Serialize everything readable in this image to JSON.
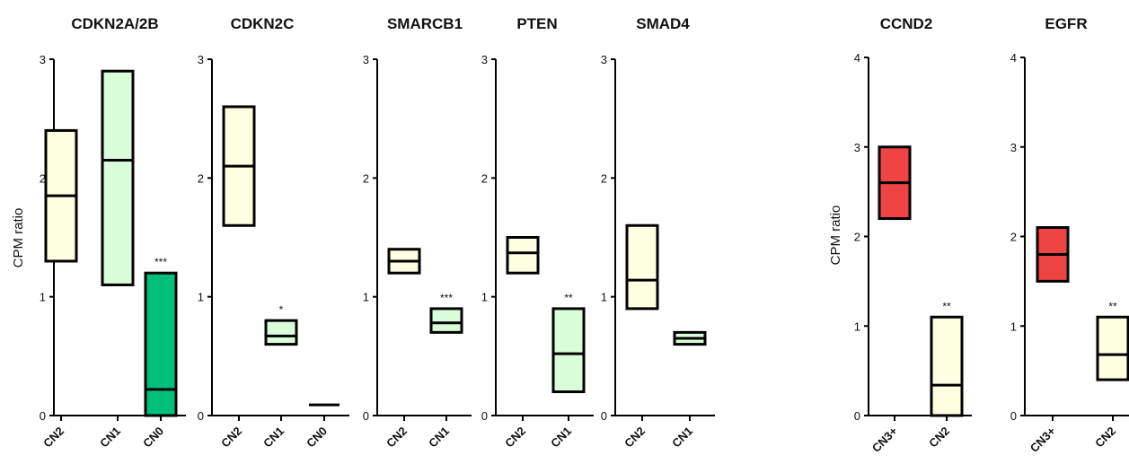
{
  "colors": {
    "cn2": "#FFFFE1",
    "cn1": "#D9FDD9",
    "cn0": "#00BF78",
    "cn3plus": "#F04444",
    "axis": "#000000"
  },
  "chart_data": [
    {
      "type": "floating-bar",
      "title": "CDKN2A/2B",
      "ylabel": "CPM ratio",
      "ylim": [
        0,
        3
      ],
      "yticks": [
        "0",
        "1",
        "2",
        "3"
      ],
      "categories": [
        "CN2",
        "CN1",
        "CN0"
      ],
      "boxes": [
        {
          "category": "CN2",
          "min": 1.3,
          "max": 2.4,
          "median": 1.85,
          "color_key": "cn2"
        },
        {
          "category": "CN1",
          "min": 1.1,
          "max": 2.9,
          "median": 2.15,
          "color_key": "cn1"
        },
        {
          "category": "CN0",
          "min": 0.0,
          "max": 1.2,
          "median": 0.22,
          "color_key": "cn0",
          "significance": "***"
        }
      ]
    },
    {
      "type": "floating-bar",
      "title": "CDKN2C",
      "ylim": [
        0,
        3
      ],
      "yticks": [
        "0",
        "1",
        "2",
        "3"
      ],
      "categories": [
        "CN2",
        "CN1",
        "CN0"
      ],
      "boxes": [
        {
          "category": "CN2",
          "min": 1.6,
          "max": 2.6,
          "median": 2.1,
          "color_key": "cn2"
        },
        {
          "category": "CN1",
          "min": 0.6,
          "max": 0.8,
          "median": 0.67,
          "color_key": "cn1",
          "significance": "*"
        },
        {
          "category": "CN0",
          "min": 0.09,
          "max": 0.09,
          "median": 0.09,
          "color_key": "cn0"
        }
      ]
    },
    {
      "type": "floating-bar",
      "title": "SMARCB1",
      "ylim": [
        0,
        3
      ],
      "yticks": [
        "0",
        "1",
        "2",
        "3"
      ],
      "categories": [
        "CN2",
        "CN1"
      ],
      "boxes": [
        {
          "category": "CN2",
          "min": 1.2,
          "max": 1.4,
          "median": 1.3,
          "color_key": "cn2"
        },
        {
          "category": "CN1",
          "min": 0.7,
          "max": 0.9,
          "median": 0.78,
          "color_key": "cn1",
          "significance": "***"
        }
      ]
    },
    {
      "type": "floating-bar",
      "title": "PTEN",
      "ylim": [
        0,
        3
      ],
      "yticks": [
        "0",
        "1",
        "2",
        "3"
      ],
      "categories": [
        "CN2",
        "CN1"
      ],
      "boxes": [
        {
          "category": "CN2",
          "min": 1.2,
          "max": 1.5,
          "median": 1.37,
          "color_key": "cn2"
        },
        {
          "category": "CN1",
          "min": 0.2,
          "max": 0.9,
          "median": 0.52,
          "color_key": "cn1",
          "significance": "**"
        }
      ]
    },
    {
      "type": "floating-bar",
      "title": "SMAD4",
      "ylim": [
        0,
        3
      ],
      "yticks": [
        "0",
        "1",
        "2",
        "3"
      ],
      "categories": [
        "CN2",
        "CN1"
      ],
      "boxes": [
        {
          "category": "CN2",
          "min": 0.9,
          "max": 1.6,
          "median": 1.14,
          "color_key": "cn2"
        },
        {
          "category": "CN1",
          "min": 0.6,
          "max": 0.7,
          "median": 0.65,
          "color_key": "cn1"
        }
      ]
    },
    {
      "type": "floating-bar",
      "title": "CCND2",
      "ylabel": "CPM ratio",
      "ylim": [
        0,
        4
      ],
      "yticks": [
        "0",
        "1",
        "2",
        "3",
        "4"
      ],
      "categories": [
        "CN3+",
        "CN2"
      ],
      "boxes": [
        {
          "category": "CN3+",
          "min": 2.2,
          "max": 3.0,
          "median": 2.6,
          "color_key": "cn3plus"
        },
        {
          "category": "CN2",
          "min": 0.0,
          "max": 1.1,
          "median": 0.34,
          "color_key": "cn2",
          "significance": "**"
        }
      ]
    },
    {
      "type": "floating-bar",
      "title": "EGFR",
      "ylim": [
        0,
        4
      ],
      "yticks": [
        "0",
        "1",
        "2",
        "3",
        "4"
      ],
      "categories": [
        "CN3+",
        "CN2"
      ],
      "boxes": [
        {
          "category": "CN3+",
          "min": 1.5,
          "max": 2.1,
          "median": 1.8,
          "color_key": "cn3plus"
        },
        {
          "category": "CN2",
          "min": 0.4,
          "max": 1.1,
          "median": 0.68,
          "color_key": "cn2",
          "significance": "**"
        }
      ]
    }
  ]
}
